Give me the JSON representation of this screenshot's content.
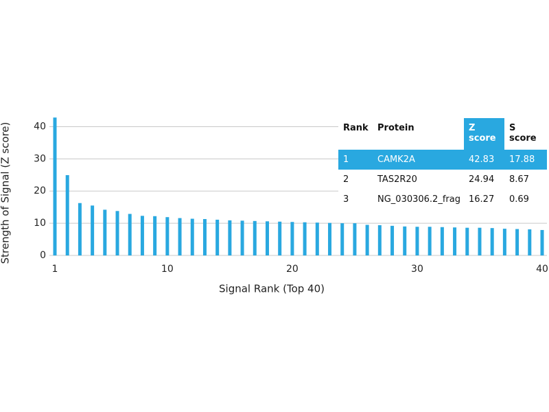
{
  "chart_data": {
    "type": "bar",
    "xlabel": "Signal Rank (Top 40)",
    "ylabel": "Strength of Signal (Z score)",
    "x": [
      1,
      2,
      3,
      4,
      5,
      6,
      7,
      8,
      9,
      10,
      11,
      12,
      13,
      14,
      15,
      16,
      17,
      18,
      19,
      20,
      21,
      22,
      23,
      24,
      25,
      26,
      27,
      28,
      29,
      30,
      31,
      32,
      33,
      34,
      35,
      36,
      37,
      38,
      39,
      40
    ],
    "values": [
      42.83,
      24.94,
      16.27,
      15.5,
      14.2,
      13.8,
      12.9,
      12.3,
      12.2,
      11.9,
      11.6,
      11.4,
      11.3,
      11.1,
      10.9,
      10.8,
      10.7,
      10.6,
      10.5,
      10.4,
      10.3,
      10.2,
      10.1,
      10.0,
      10.0,
      9.5,
      9.4,
      9.2,
      9.0,
      8.9,
      8.9,
      8.8,
      8.7,
      8.6,
      8.6,
      8.5,
      8.3,
      8.2,
      8.1,
      7.9
    ],
    "color": "#29a8e0",
    "xlim": [
      1,
      40
    ],
    "xticks": [
      1,
      10,
      20,
      30,
      40
    ],
    "ylim": [
      0,
      45
    ],
    "yticks": [
      0,
      10,
      20,
      30,
      40
    ],
    "grid": true
  },
  "table": {
    "columns": [
      "Rank",
      "Protein",
      "Z score",
      "S score"
    ],
    "rows": [
      [
        "1",
        "CAMK2A",
        "42.83",
        "17.88"
      ],
      [
        "2",
        "TAS2R20",
        "24.94",
        "8.67"
      ],
      [
        "3",
        "NG_030306.2_frag",
        "16.27",
        "0.69"
      ]
    ]
  }
}
